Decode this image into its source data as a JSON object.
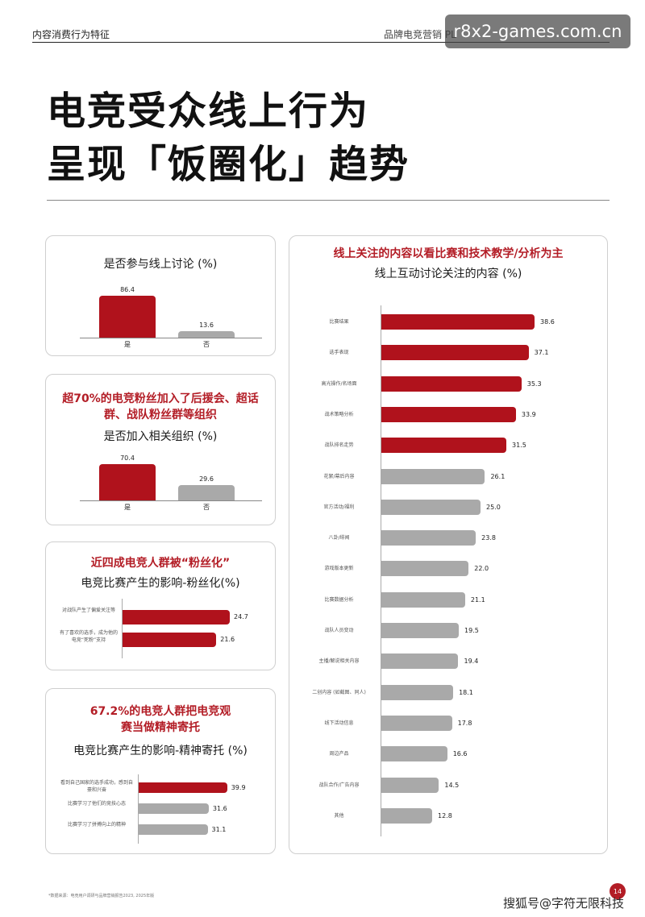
{
  "header": {
    "section": "内容消费行为特征",
    "brand": "品牌电竞营销 PL"
  },
  "watermark": "r8x2-games.com.cn",
  "title": {
    "line1": "电竞受众线上行为",
    "line2": "呈现「饭圈化」趋势"
  },
  "card1": {
    "subtitle": "是否参与线上讨论 (%)",
    "chart_data": {
      "type": "bar",
      "categories": [
        "是",
        "否"
      ],
      "values": [
        86.4,
        13.6
      ],
      "colors": [
        "#b0121c",
        "#a9a9a9"
      ]
    }
  },
  "card2": {
    "headline": "超70%的电竞粉丝加入了后援会、超话群、战队粉丝群等组织",
    "subtitle": "是否加入相关组织 (%)",
    "chart_data": {
      "type": "bar",
      "categories": [
        "是",
        "否"
      ],
      "values": [
        70.4,
        29.6
      ],
      "colors": [
        "#b0121c",
        "#a9a9a9"
      ]
    }
  },
  "card3": {
    "headline": "近四成电竞人群被“粉丝化”",
    "subtitle": "电竞比赛产生的影响-粉丝化(%)",
    "chart_data": {
      "type": "bar",
      "orientation": "horizontal",
      "categories": [
        "对战队产生了偏爱关注等",
        "有了喜欢的选手，成为他的电竞“死粉”支持"
      ],
      "values": [
        24.7,
        21.6
      ],
      "colors": [
        "#b0121c",
        "#b0121c"
      ]
    }
  },
  "card4": {
    "headline": "67.2%的电竞人群把电竞观赛当做精神寄托",
    "subtitle": "电竞比赛产生的影响-精神寄托 (%)",
    "chart_data": {
      "type": "bar",
      "orientation": "horizontal",
      "categories": [
        "看到自己国家的选手成功，感到自豪和兴奋",
        "比赛学习了他们的竞技心态",
        "比赛学习了拼搏向上的精神"
      ],
      "values": [
        39.9,
        31.6,
        31.1
      ],
      "colors": [
        "#b0121c",
        "#a9a9a9",
        "#a9a9a9"
      ]
    }
  },
  "card5": {
    "headline": "线上关注的内容以看比赛和技术教学/分析为主",
    "subtitle": "线上互动讨论关注的内容 (%)",
    "chart_data": {
      "type": "bar",
      "orientation": "horizontal",
      "categories": [
        "比赛结果",
        "选手表现",
        "高光操作/名场面",
        "战术策略分析",
        "战队排名走势",
        "花絮/幕后内容",
        "官方活动/福利",
        "八卦/绯闻",
        "游戏版本更新",
        "比赛数据分析",
        "战队人员变动",
        "主播/解说相关内容",
        "二创内容 (如截图、同人)",
        "线下活动信息",
        "周边产品",
        "战队合作/广告内容",
        "其他"
      ],
      "values": [
        38.6,
        37.1,
        35.3,
        33.9,
        31.5,
        26.1,
        25.0,
        23.8,
        22.0,
        21.1,
        19.5,
        19.4,
        18.1,
        17.8,
        16.6,
        14.5,
        12.8
      ],
      "value_labels": [
        "38.6",
        "37.1",
        "35.3",
        "33.9",
        "31.5",
        "26.1",
        "25.0",
        "23.8",
        "22.0",
        "21.1",
        "19.5",
        "19.4",
        "18.1",
        "17.8",
        "16.6",
        "14.5",
        "12.8"
      ],
      "highlight_count": 5,
      "colors": [
        "#b0121c",
        "#a9a9a9"
      ]
    }
  },
  "footnote": "*数据来源：电竞用户调研与品牌营销报告2023, 2025年版",
  "page_number": "14",
  "source_credit": "搜狐号@字符无限科技"
}
